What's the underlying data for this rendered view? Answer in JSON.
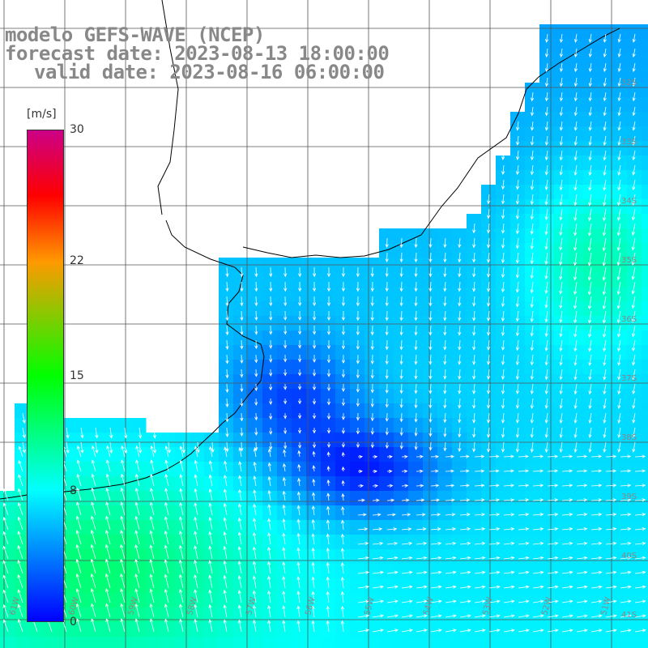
{
  "title": {
    "line1": "modelo GEFS-WAVE (NCEP)",
    "line2": "forecast date: 2023-08-13 18:00:00",
    "line3": "valid date: 2023-08-16 06:00:00"
  },
  "colorbar": {
    "unit": "[m/s]",
    "min": 0,
    "max": 30,
    "ticks": [
      {
        "value": 30,
        "label": "30"
      },
      {
        "value": 22,
        "label": "22"
      },
      {
        "value": 15,
        "label": "15"
      },
      {
        "value": 8,
        "label": "8"
      },
      {
        "value": 0,
        "label": "0"
      }
    ],
    "stops": [
      {
        "value": 0,
        "color": "#0000ff"
      },
      {
        "value": 8,
        "color": "#00ffff"
      },
      {
        "value": 15,
        "color": "#00ff00"
      },
      {
        "value": 22,
        "color": "#ff9900"
      },
      {
        "value": 26,
        "color": "#ff0000"
      },
      {
        "value": 30,
        "color": "#cc0088"
      }
    ]
  },
  "map": {
    "variable": "wind speed and direction",
    "lat_labels": [
      "32S",
      "33S",
      "34S",
      "35S",
      "36S",
      "37S",
      "38S",
      "39S",
      "40S",
      "41S"
    ],
    "lon_labels": [
      "61W",
      "60W",
      "59W",
      "58W",
      "57W",
      "56W",
      "55W",
      "54W",
      "53W",
      "52W",
      "51W"
    ],
    "colors": {
      "land": "#ffffff",
      "grid": "#555555",
      "coast": "#000000",
      "arrow": "#ffffff"
    }
  }
}
